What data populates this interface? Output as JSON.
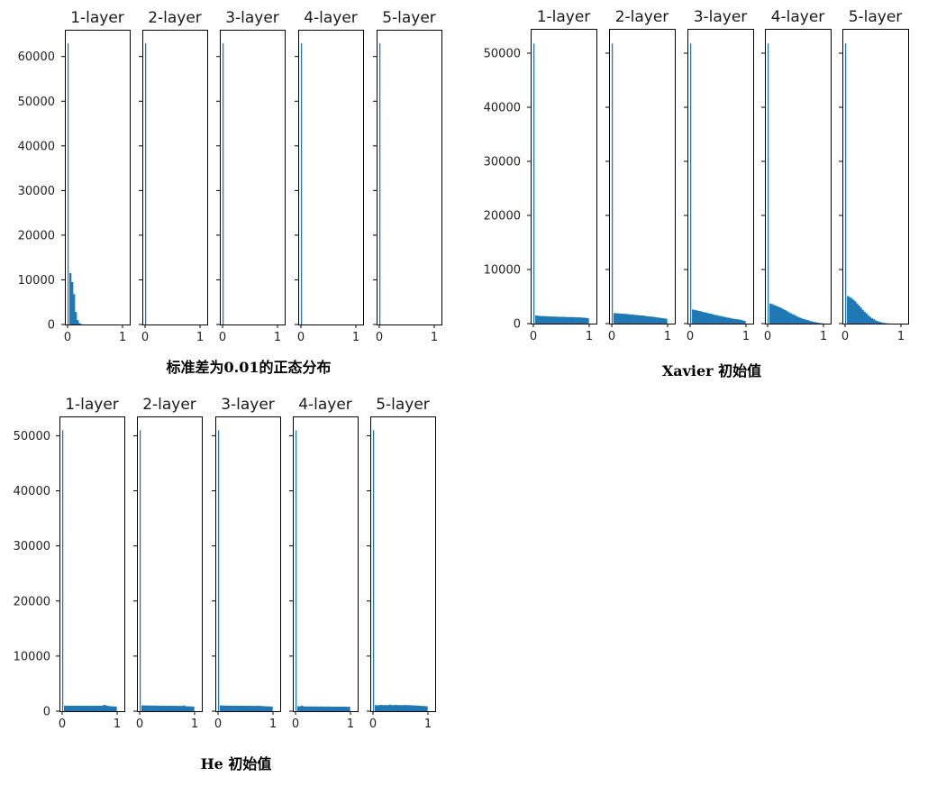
{
  "chart_data": [
    {
      "type": "bar",
      "caption": "标准差为0.01的正态分布",
      "xlim": [
        0,
        1
      ],
      "xticks": [
        "0",
        "1"
      ],
      "ylim": [
        0,
        66000
      ],
      "yticks": [
        "0",
        "10000",
        "20000",
        "30000",
        "40000",
        "50000",
        "60000"
      ],
      "panels": [
        {
          "title": "1-layer",
          "spike": 63000,
          "bin_width": 0.033,
          "values": [
            0,
            11500,
            9500,
            6800,
            2800,
            1000,
            300,
            80
          ]
        },
        {
          "title": "2-layer",
          "spike": 63000,
          "bin_width": 0.033,
          "values": []
        },
        {
          "title": "3-layer",
          "spike": 63000,
          "bin_width": 0.033,
          "values": []
        },
        {
          "title": "4-layer",
          "spike": 63000,
          "bin_width": 0.033,
          "values": []
        },
        {
          "title": "5-layer",
          "spike": 63000,
          "bin_width": 0.033,
          "values": []
        }
      ]
    },
    {
      "type": "bar",
      "caption": "Xavier 初始值",
      "xlim": [
        0,
        1
      ],
      "xticks": [
        "0",
        "1"
      ],
      "ylim": [
        0,
        54500
      ],
      "yticks": [
        "0",
        "10000",
        "20000",
        "30000",
        "40000",
        "50000"
      ],
      "panels": [
        {
          "title": "1-layer",
          "spike": 51800,
          "bin_width": 0.033,
          "values": [
            0,
            1500,
            1450,
            1400,
            1400,
            1380,
            1350,
            1350,
            1320,
            1300,
            1300,
            1300,
            1280,
            1250,
            1250,
            1250,
            1250,
            1220,
            1200,
            1200,
            1200,
            1200,
            1180,
            1150,
            1150,
            1150,
            1100,
            1100,
            1050,
            1000
          ]
        },
        {
          "title": "2-layer",
          "spike": 51800,
          "bin_width": 0.033,
          "values": [
            0,
            1950,
            1900,
            1900,
            1850,
            1850,
            1800,
            1800,
            1750,
            1700,
            1700,
            1650,
            1600,
            1600,
            1550,
            1500,
            1500,
            1450,
            1400,
            1350,
            1300,
            1300,
            1250,
            1200,
            1150,
            1100,
            1050,
            1000,
            950,
            900
          ]
        },
        {
          "title": "3-layer",
          "spike": 51800,
          "bin_width": 0.033,
          "values": [
            0,
            2600,
            2500,
            2450,
            2350,
            2300,
            2200,
            2100,
            2050,
            1950,
            1850,
            1800,
            1700,
            1600,
            1550,
            1450,
            1400,
            1300,
            1250,
            1150,
            1100,
            1050,
            950,
            900,
            850,
            800,
            750,
            700,
            600,
            500
          ]
        },
        {
          "title": "4-layer",
          "spike": 51800,
          "bin_width": 0.033,
          "values": [
            0,
            3700,
            3600,
            3450,
            3300,
            3150,
            3000,
            2850,
            2650,
            2500,
            2300,
            2100,
            1900,
            1750,
            1600,
            1400,
            1250,
            1100,
            950,
            850,
            750,
            650,
            550,
            450,
            350,
            300,
            200,
            150,
            100,
            50
          ]
        },
        {
          "title": "5-layer",
          "spike": 51800,
          "bin_width": 0.033,
          "values": [
            0,
            5100,
            4900,
            4700,
            4400,
            4100,
            3700,
            3350,
            2950,
            2550,
            2200,
            1900,
            1550,
            1250,
            1000,
            800,
            600,
            450,
            350,
            250,
            150,
            100,
            60,
            30
          ]
        }
      ]
    },
    {
      "type": "bar",
      "caption": "He 初始值",
      "xlim": [
        0,
        1
      ],
      "xticks": [
        "0",
        "1"
      ],
      "ylim": [
        0,
        53500
      ],
      "yticks": [
        "0",
        "10000",
        "20000",
        "30000",
        "40000",
        "50000"
      ],
      "panels": [
        {
          "title": "1-layer",
          "spike": 51000,
          "bin_width": 0.033,
          "values": [
            0,
            1000,
            980,
            1000,
            990,
            1000,
            980,
            990,
            1000,
            990,
            980,
            1000,
            990,
            980,
            1000,
            990,
            980,
            990,
            1000,
            980,
            990,
            1000,
            1050,
            1150,
            1000,
            950,
            900,
            880,
            860,
            850
          ]
        },
        {
          "title": "2-layer",
          "spike": 51000,
          "bin_width": 0.033,
          "values": [
            0,
            1050,
            1050,
            1030,
            1040,
            1020,
            1030,
            1010,
            1020,
            1000,
            1010,
            1000,
            990,
            1000,
            980,
            990,
            980,
            970,
            980,
            960,
            970,
            960,
            950,
            950,
            1050,
            900,
            880,
            870,
            860,
            850
          ]
        },
        {
          "title": "3-layer",
          "spike": 51000,
          "bin_width": 0.033,
          "values": [
            0,
            1050,
            1020,
            1020,
            1000,
            1010,
            1000,
            1000,
            990,
            1000,
            990,
            990,
            980,
            990,
            980,
            980,
            970,
            980,
            970,
            960,
            970,
            960,
            1000,
            950,
            940,
            900,
            880,
            870,
            860,
            850
          ]
        },
        {
          "title": "4-layer",
          "spike": 51000,
          "bin_width": 0.033,
          "values": [
            0,
            900,
            880,
            1000,
            870,
            860,
            860,
            850,
            860,
            850,
            850,
            860,
            840,
            850,
            850,
            840,
            830,
            850,
            840,
            830,
            830,
            820,
            830,
            820,
            820,
            810,
            820,
            810,
            800,
            800
          ]
        },
        {
          "title": "5-layer",
          "spike": 51000,
          "bin_width": 0.033,
          "values": [
            0,
            1100,
            1050,
            1100,
            1150,
            1080,
            1120,
            1100,
            1100,
            1200,
            1080,
            1100,
            1150,
            1100,
            1100,
            1080,
            1100,
            1120,
            1100,
            1080,
            1100,
            1060,
            1050,
            1030,
            1000,
            980,
            960,
            940,
            920,
            900
          ]
        }
      ]
    }
  ]
}
